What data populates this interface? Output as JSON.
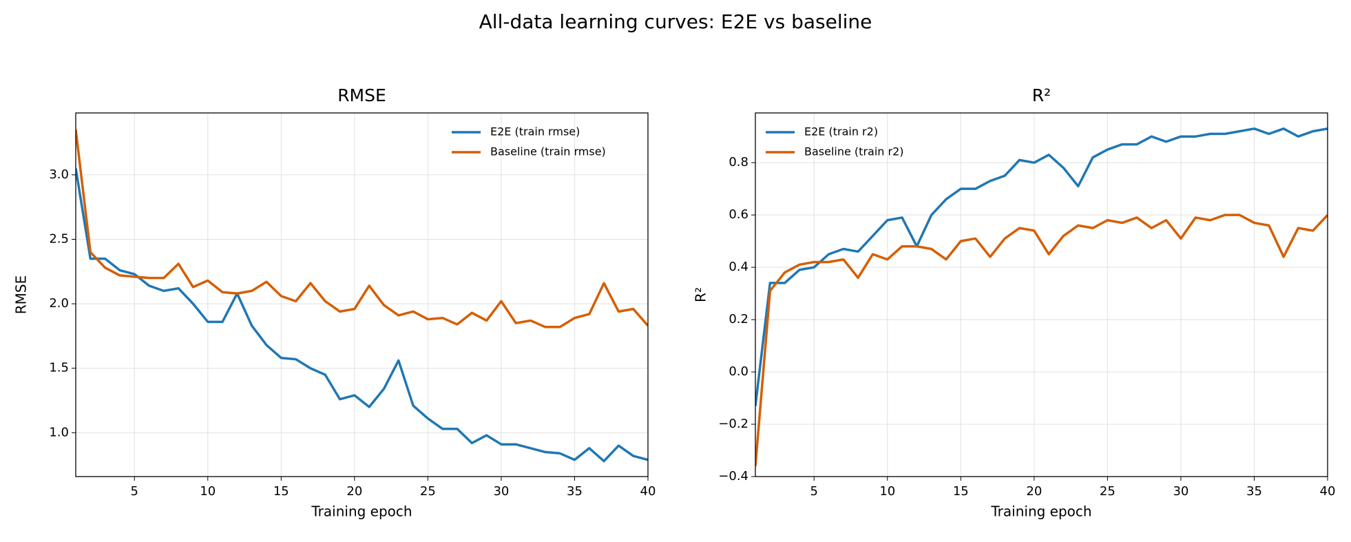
{
  "title": "All-data learning curves: E2E vs baseline",
  "chart_data": [
    {
      "type": "line",
      "title": "RMSE",
      "xlabel": "Training epoch",
      "ylabel": "RMSE",
      "x": [
        1,
        2,
        3,
        4,
        5,
        6,
        7,
        8,
        9,
        10,
        11,
        12,
        13,
        14,
        15,
        16,
        17,
        18,
        19,
        20,
        21,
        22,
        23,
        24,
        25,
        26,
        27,
        28,
        29,
        30,
        31,
        32,
        33,
        34,
        35,
        36,
        37,
        38,
        39,
        40
      ],
      "series": [
        {
          "name": "E2E (train rmse)",
          "color": "#1f77b4",
          "values": [
            3.05,
            2.35,
            2.35,
            2.26,
            2.23,
            2.14,
            2.1,
            2.12,
            2.0,
            1.86,
            1.86,
            2.08,
            1.83,
            1.68,
            1.58,
            1.57,
            1.5,
            1.45,
            1.26,
            1.29,
            1.2,
            1.34,
            1.56,
            1.21,
            1.11,
            1.03,
            1.03,
            0.92,
            0.98,
            0.91,
            0.91,
            0.88,
            0.85,
            0.84,
            0.79,
            0.88,
            0.78,
            0.9,
            0.82,
            0.79
          ]
        },
        {
          "name": "Baseline (train rmse)",
          "color": "#d55e00",
          "values": [
            3.35,
            2.4,
            2.28,
            2.22,
            2.21,
            2.2,
            2.2,
            2.31,
            2.13,
            2.18,
            2.09,
            2.08,
            2.1,
            2.17,
            2.06,
            2.02,
            2.16,
            2.02,
            1.94,
            1.96,
            2.14,
            1.99,
            1.91,
            1.94,
            1.88,
            1.89,
            1.84,
            1.93,
            1.87,
            2.02,
            1.85,
            1.87,
            1.82,
            1.82,
            1.89,
            1.92,
            2.16,
            1.94,
            1.96,
            1.83
          ]
        }
      ],
      "xlim": [
        1,
        40
      ],
      "xticks": [
        5,
        10,
        15,
        20,
        25,
        30,
        35,
        40
      ],
      "ylim": [
        0.66,
        3.48
      ],
      "yticks": [
        {
          "value": 1.0,
          "label": "1.0"
        },
        1.5,
        {
          "value": 2.0,
          "label": "2.0"
        },
        2.5,
        {
          "value": 3.0,
          "label": "3.0"
        }
      ],
      "grid": true,
      "legend": "upper right"
    },
    {
      "type": "line",
      "title": "R²",
      "xlabel": "Training epoch",
      "ylabel": "R²",
      "x": [
        1,
        2,
        3,
        4,
        5,
        6,
        7,
        8,
        9,
        10,
        11,
        12,
        13,
        14,
        15,
        16,
        17,
        18,
        19,
        20,
        21,
        22,
        23,
        24,
        25,
        26,
        27,
        28,
        29,
        30,
        31,
        32,
        33,
        34,
        35,
        36,
        37,
        38,
        39,
        40
      ],
      "series": [
        {
          "name": "E2E (train r2)",
          "color": "#1f77b4",
          "values": [
            -0.13,
            0.34,
            0.34,
            0.39,
            0.4,
            0.45,
            0.47,
            0.46,
            0.52,
            0.58,
            0.59,
            0.48,
            0.6,
            0.66,
            0.7,
            0.7,
            0.73,
            0.75,
            0.81,
            0.8,
            0.83,
            0.78,
            0.71,
            0.82,
            0.85,
            0.87,
            0.87,
            0.9,
            0.88,
            0.9,
            0.9,
            0.91,
            0.91,
            0.92,
            0.93,
            0.91,
            0.93,
            0.9,
            0.92,
            0.93
          ]
        },
        {
          "name": "Baseline (train r2)",
          "color": "#d55e00",
          "values": [
            -0.36,
            0.31,
            0.38,
            0.41,
            0.42,
            0.42,
            0.43,
            0.36,
            0.45,
            0.43,
            0.48,
            0.48,
            0.47,
            0.43,
            0.5,
            0.51,
            0.44,
            0.51,
            0.55,
            0.54,
            0.45,
            0.52,
            0.56,
            0.55,
            0.58,
            0.57,
            0.59,
            0.55,
            0.58,
            0.51,
            0.59,
            0.58,
            0.6,
            0.6,
            0.57,
            0.56,
            0.44,
            0.55,
            0.54,
            0.6
          ]
        }
      ],
      "xlim": [
        1,
        40
      ],
      "xticks": [
        5,
        10,
        15,
        20,
        25,
        30,
        35,
        40
      ],
      "ylim": [
        -0.4,
        0.99
      ],
      "yticks": [
        {
          "value": -0.4,
          "label": "−0.4"
        },
        {
          "value": -0.2,
          "label": "−0.2"
        },
        {
          "value": 0.0,
          "label": "0.0"
        },
        0.2,
        0.4,
        0.6,
        0.8
      ],
      "grid": true,
      "legend": "upper left"
    }
  ]
}
